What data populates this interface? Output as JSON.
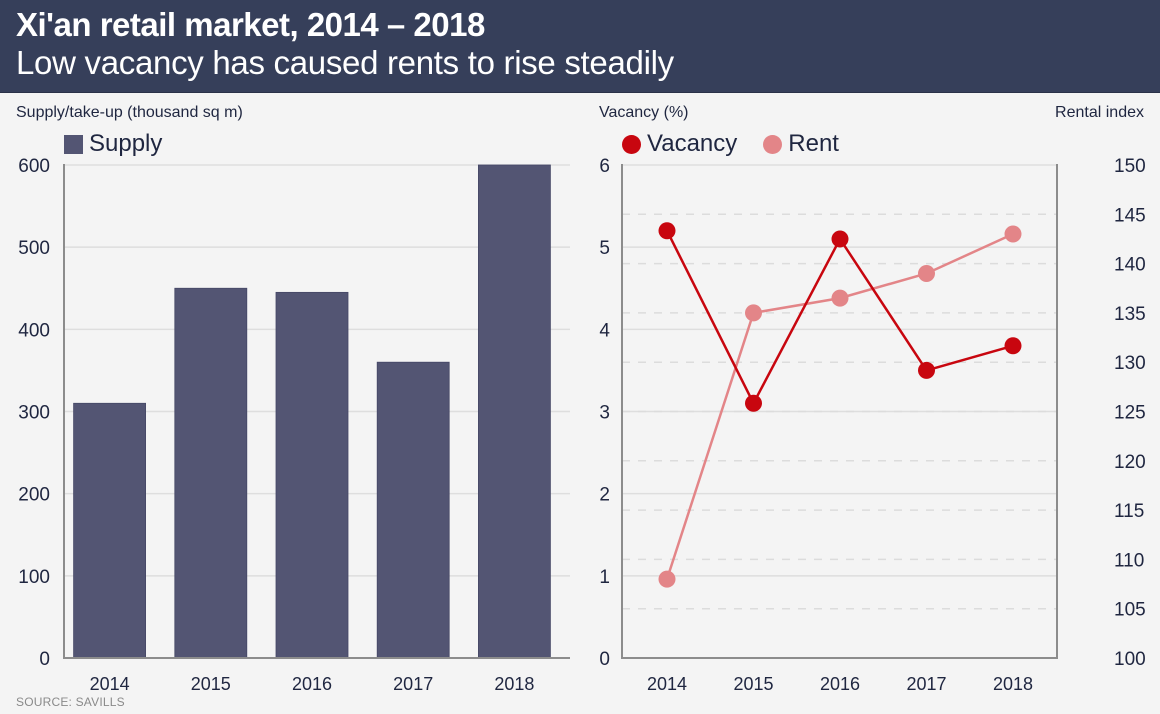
{
  "header": {
    "title": "Xi'an retail market, 2014 – 2018",
    "subtitle": "Low vacancy has caused rents to rise steadily"
  },
  "source": "SOURCE: SAVILLS",
  "colors": {
    "header_bg": "#363f5a",
    "supply": "#535573",
    "vacancy": "#c8060f",
    "rent": "#e38588",
    "text": "#1f2640"
  },
  "chart_data": [
    {
      "type": "bar",
      "ylabel": "Supply/take-up (thousand sq m)",
      "categories": [
        "2014",
        "2015",
        "2016",
        "2017",
        "2018"
      ],
      "series": [
        {
          "name": "Supply",
          "values": [
            310,
            450,
            445,
            360,
            600
          ]
        }
      ],
      "ylim": [
        0,
        600
      ],
      "yticks": [
        0,
        100,
        200,
        300,
        400,
        500,
        600
      ],
      "grid": true,
      "legend": "top-left"
    },
    {
      "type": "line",
      "ylabel": "Vacancy (%)",
      "y2label": "Rental index",
      "categories": [
        "2014",
        "2015",
        "2016",
        "2017",
        "2018"
      ],
      "series": [
        {
          "name": "Vacancy",
          "axis": "left",
          "values": [
            5.2,
            3.1,
            5.1,
            3.5,
            3.8
          ]
        },
        {
          "name": "Rent",
          "axis": "right",
          "values": [
            108,
            135,
            136.5,
            139,
            143
          ]
        }
      ],
      "ylim": [
        0,
        6
      ],
      "yticks": [
        0,
        1,
        2,
        3,
        4,
        5,
        6
      ],
      "y2lim": [
        100,
        150
      ],
      "y2ticks": [
        100,
        105,
        110,
        115,
        120,
        125,
        130,
        135,
        140,
        145,
        150
      ],
      "grid": true,
      "legend": "top-left"
    }
  ]
}
